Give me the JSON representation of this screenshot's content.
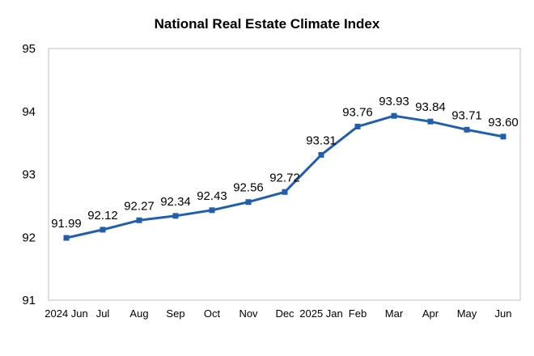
{
  "chart_data": {
    "type": "line",
    "title": "National Real Estate Climate Index",
    "xlabel": "",
    "ylabel": "",
    "categories": [
      "2024 Jun",
      "Jul",
      "Aug",
      "Sep",
      "Oct",
      "Nov",
      "Dec",
      "2025 Jan",
      "Feb",
      "Mar",
      "Apr",
      "May",
      "Jun"
    ],
    "series": [
      {
        "values": [
          91.99,
          92.12,
          92.27,
          92.34,
          92.43,
          92.56,
          92.72,
          93.31,
          93.76,
          93.93,
          93.84,
          93.71,
          93.6
        ],
        "labels": [
          "91.99",
          "92.12",
          "92.27",
          "92.34",
          "92.43",
          "92.56",
          "92.72",
          "93.31",
          "93.76",
          "93.93",
          "93.84",
          "93.71",
          "93.60"
        ],
        "color": "#1f5fad"
      }
    ],
    "yticks": [
      "91",
      "92",
      "93",
      "94",
      "95"
    ],
    "ylim": [
      91,
      95
    ],
    "grid": false,
    "legend": "none",
    "marker": "square"
  }
}
